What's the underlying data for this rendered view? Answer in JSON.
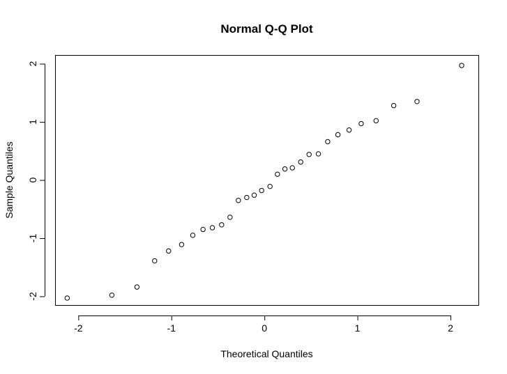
{
  "chart_data": {
    "type": "scatter",
    "title": "Normal Q-Q Plot",
    "xlabel": "Theoretical Quantiles",
    "ylabel": "Sample Quantiles",
    "xlim": [
      -2.25,
      2.3
    ],
    "ylim": [
      -2.15,
      2.15
    ],
    "xticks": [
      -2,
      -1,
      0,
      1,
      2
    ],
    "yticks": [
      -2,
      -1,
      0,
      1,
      2
    ],
    "xtick_labels": [
      "-2",
      "-1",
      "0",
      "1",
      "2"
    ],
    "ytick_labels": [
      "-2",
      "-1",
      "0",
      "1",
      "2"
    ],
    "grid": false,
    "marker": "open-circle",
    "points": [
      {
        "x": -2.12,
        "y": -2.03
      },
      {
        "x": -1.64,
        "y": -1.98
      },
      {
        "x": -1.37,
        "y": -1.84
      },
      {
        "x": -1.18,
        "y": -1.39
      },
      {
        "x": -1.03,
        "y": -1.22
      },
      {
        "x": -0.89,
        "y": -1.11
      },
      {
        "x": -0.77,
        "y": -0.95
      },
      {
        "x": -0.66,
        "y": -0.85
      },
      {
        "x": -0.56,
        "y": -0.82
      },
      {
        "x": -0.46,
        "y": -0.77
      },
      {
        "x": -0.37,
        "y": -0.64
      },
      {
        "x": -0.28,
        "y": -0.35
      },
      {
        "x": -0.19,
        "y": -0.3
      },
      {
        "x": -0.11,
        "y": -0.26
      },
      {
        "x": -0.03,
        "y": -0.18
      },
      {
        "x": 0.06,
        "y": -0.11
      },
      {
        "x": 0.14,
        "y": 0.1
      },
      {
        "x": 0.22,
        "y": 0.19
      },
      {
        "x": 0.3,
        "y": 0.21
      },
      {
        "x": 0.39,
        "y": 0.31
      },
      {
        "x": 0.48,
        "y": 0.44
      },
      {
        "x": 0.58,
        "y": 0.45
      },
      {
        "x": 0.68,
        "y": 0.66
      },
      {
        "x": 0.79,
        "y": 0.78
      },
      {
        "x": 0.91,
        "y": 0.86
      },
      {
        "x": 1.04,
        "y": 0.97
      },
      {
        "x": 1.2,
        "y": 1.02
      },
      {
        "x": 1.39,
        "y": 1.28
      },
      {
        "x": 1.64,
        "y": 1.35
      },
      {
        "x": 2.12,
        "y": 1.97
      }
    ]
  }
}
